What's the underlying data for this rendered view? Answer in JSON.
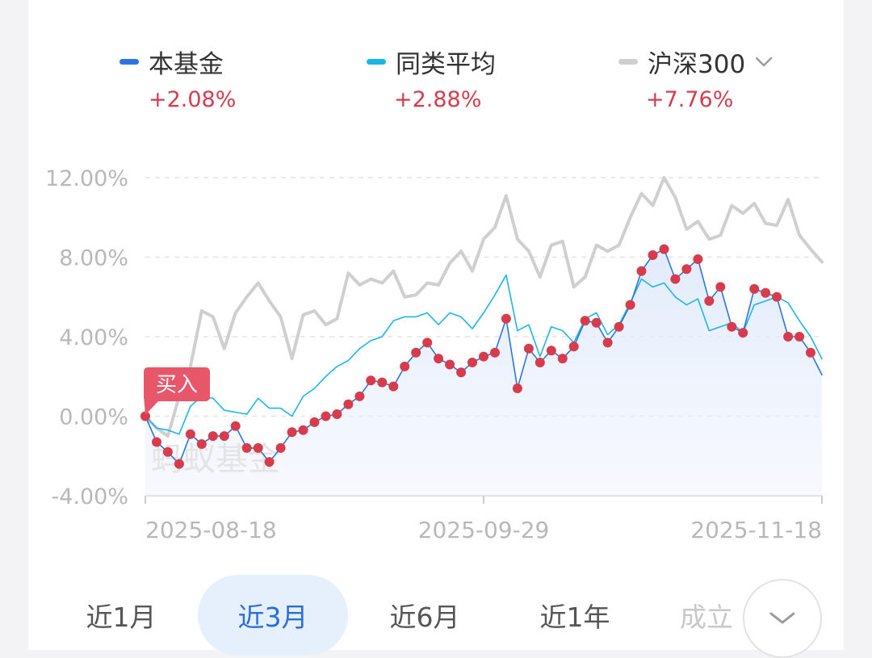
{
  "legend": [
    {
      "name": "本基金",
      "value": "+2.08%",
      "color": "#2a75e0",
      "has_dropdown": false
    },
    {
      "name": "同类平均",
      "value": "+2.88%",
      "color": "#1cb6e6",
      "has_dropdown": false
    },
    {
      "name": "沪深300",
      "value": "+7.76%",
      "color": "#cfcfcf",
      "has_dropdown": true,
      "dropdown_icon": "chevron-down-icon"
    }
  ],
  "buy_marker": "买入",
  "watermark": "蚂蚁基金",
  "periods": [
    {
      "label": "近1月",
      "active": false
    },
    {
      "label": "近3月",
      "active": true
    },
    {
      "label": "近6月",
      "active": false
    },
    {
      "label": "近1年",
      "active": false
    },
    {
      "label": "成立",
      "active": false
    }
  ],
  "expand_icon": "chevron-down-icon",
  "chart_data": {
    "type": "line",
    "ylim": [
      -4,
      12
    ],
    "y_ticks": [
      "12.00%",
      "8.00%",
      "4.00%",
      "0.00%",
      "-4.00%"
    ],
    "y_tick_values": [
      12,
      8,
      4,
      0,
      -4
    ],
    "x_ticks": [
      "2025-08-18",
      "2025-09-29",
      "2025-11-18"
    ],
    "x_tick_index": [
      0,
      30,
      60
    ],
    "grid": true,
    "colors": {
      "fund": "#2a75e0",
      "peer": "#1cb6e6",
      "index": "#cfcfcf",
      "dots": "#d63c4c",
      "buy": "#e8566a"
    },
    "series": [
      {
        "name": "本基金",
        "values": [
          0.0,
          -1.3,
          -1.8,
          -2.4,
          -0.9,
          -1.4,
          -1.0,
          -1.0,
          -0.5,
          -1.6,
          -1.6,
          -2.3,
          -1.6,
          -0.8,
          -0.7,
          -0.3,
          0.0,
          0.1,
          0.6,
          1.0,
          1.8,
          1.7,
          1.5,
          2.5,
          3.2,
          3.7,
          2.9,
          2.6,
          2.2,
          2.7,
          3.0,
          3.2,
          4.9,
          1.4,
          3.4,
          2.7,
          3.3,
          2.9,
          3.5,
          4.8,
          4.7,
          3.7,
          4.5,
          5.6,
          7.3,
          8.1,
          8.4,
          6.9,
          7.4,
          7.9,
          5.8,
          6.5,
          4.5,
          4.2,
          6.4,
          6.2,
          6.0,
          4.0,
          4.0,
          3.2,
          2.08
        ]
      },
      {
        "name": "同类平均",
        "values": [
          0.0,
          -0.6,
          -0.7,
          -0.9,
          0.5,
          1.0,
          0.9,
          0.3,
          0.2,
          0.1,
          0.9,
          0.4,
          0.4,
          0.0,
          1.0,
          1.4,
          2.0,
          2.5,
          2.8,
          3.4,
          3.8,
          4.0,
          4.8,
          5.0,
          5.0,
          5.2,
          4.6,
          5.2,
          5.0,
          4.4,
          5.2,
          6.1,
          7.1,
          4.3,
          4.6,
          3.0,
          4.5,
          4.3,
          3.7,
          4.9,
          5.2,
          4.1,
          4.6,
          5.7,
          6.9,
          6.5,
          6.7,
          6.0,
          5.6,
          5.9,
          4.3,
          4.5,
          4.7,
          4.2,
          5.6,
          5.8,
          6.0,
          5.7,
          4.8,
          4.0,
          2.88
        ]
      },
      {
        "name": "沪深300",
        "values": [
          0.0,
          -0.6,
          -1.0,
          1.0,
          2.5,
          5.3,
          5.0,
          3.4,
          5.2,
          6.0,
          6.7,
          5.8,
          5.0,
          2.9,
          5.1,
          5.3,
          4.6,
          4.9,
          7.2,
          6.6,
          6.9,
          6.7,
          7.3,
          6.0,
          6.1,
          6.7,
          6.6,
          7.7,
          8.3,
          7.3,
          8.9,
          9.5,
          11.1,
          8.9,
          8.3,
          7.0,
          8.6,
          8.8,
          6.5,
          7.0,
          8.6,
          8.3,
          8.6,
          10.0,
          11.2,
          10.6,
          12.0,
          11.0,
          9.4,
          9.8,
          8.9,
          9.1,
          10.6,
          10.2,
          10.7,
          9.7,
          9.6,
          10.9,
          9.1,
          8.4,
          7.76
        ]
      }
    ]
  }
}
